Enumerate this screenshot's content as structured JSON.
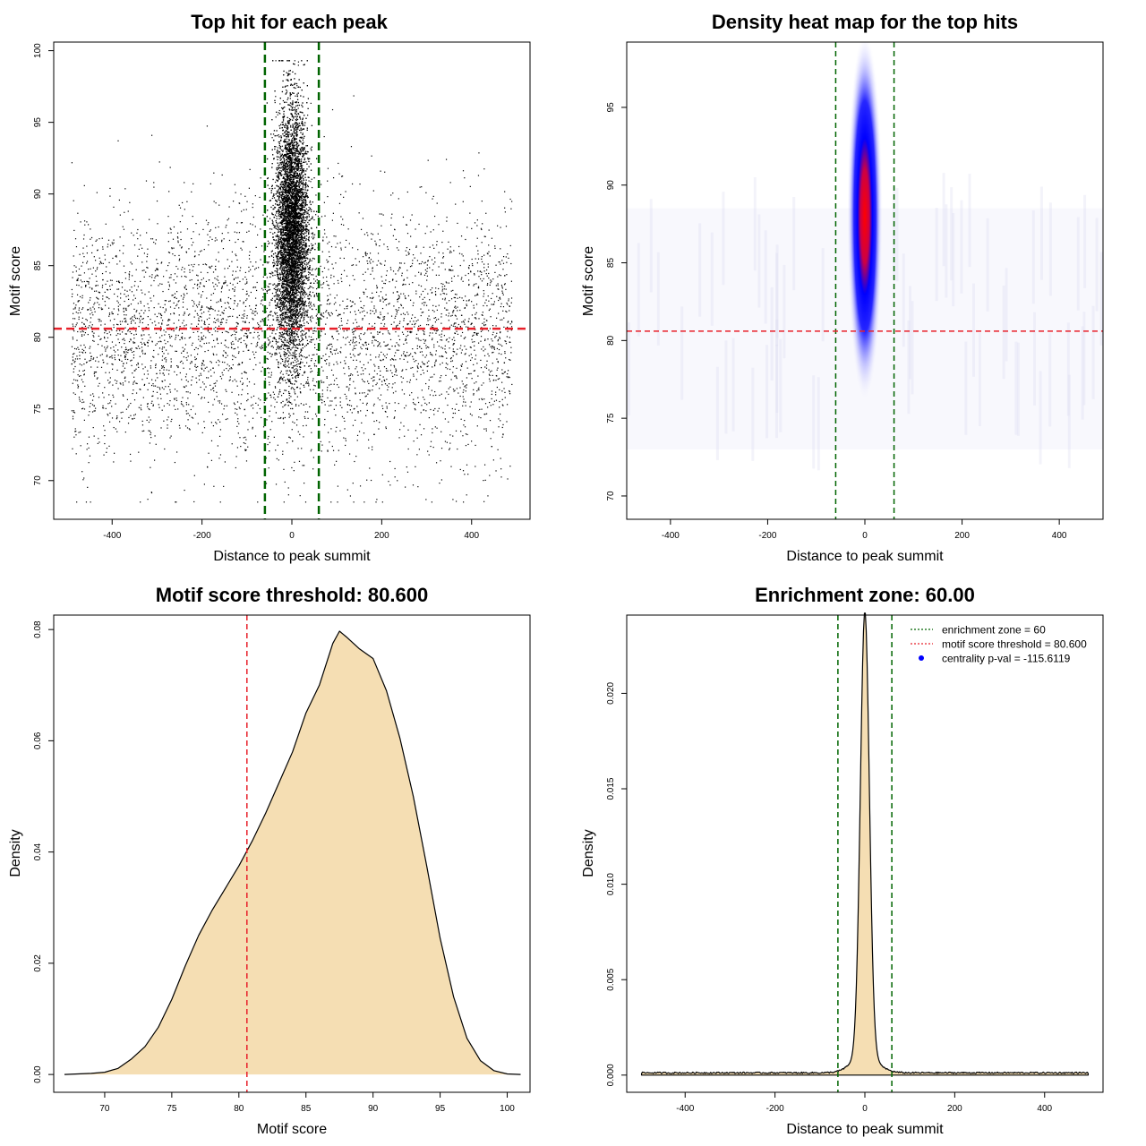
{
  "colors": {
    "green_line": "#006400",
    "red_line": "#e8202a",
    "fill": "#f5deb3",
    "heat_blue": "#0000ff",
    "heat_red": "#ff0000",
    "point": "#000000"
  },
  "chart_data": [
    {
      "id": "p1",
      "type": "scatter",
      "title": "Top hit for each peak",
      "xlabel": "Distance to peak summit",
      "ylabel": "Motif score",
      "xlim": [
        -530,
        530
      ],
      "ylim": [
        67.3,
        100.6
      ],
      "xticks": [
        -400,
        -200,
        0,
        200,
        400
      ],
      "xtick_labels": [
        "-400",
        "-200",
        "0",
        "200",
        "400"
      ],
      "yticks": [
        70,
        75,
        80,
        85,
        90,
        95,
        100
      ],
      "ytick_labels": [
        "70",
        "75",
        "80",
        "85",
        "90",
        "95",
        "100"
      ],
      "vlines": [
        -60,
        60
      ],
      "hline": 80.6,
      "points": {
        "central": {
          "count": 9000,
          "x_mean": 0,
          "x_sd": 18,
          "x_range": [
            -55,
            55
          ],
          "y_mean": 87.3,
          "y_sd": 4.3,
          "y_range": [
            72,
            99.3
          ]
        },
        "background": {
          "count": 4500,
          "x_range": [
            -490,
            490
          ],
          "y_mean": 80.2,
          "y_sd": 4.4,
          "y_range": [
            68.5,
            98.5
          ]
        }
      }
    },
    {
      "id": "p2",
      "type": "heatmap",
      "title": "Density heat map for the top hits",
      "xlabel": "Distance to peak summit",
      "ylabel": "Motif score",
      "xlim": [
        -490,
        490
      ],
      "ylim": [
        68.5,
        99.2
      ],
      "xticks": [
        -400,
        -200,
        0,
        200,
        400
      ],
      "xtick_labels": [
        "-400",
        "-200",
        "0",
        "200",
        "400"
      ],
      "yticks": [
        70,
        75,
        80,
        85,
        90,
        95
      ],
      "ytick_labels": [
        "70",
        "75",
        "80",
        "85",
        "90",
        "95"
      ],
      "vlines": [
        -60,
        60
      ],
      "hline": 80.6,
      "density": {
        "center_x": 0,
        "sd_x": 14,
        "center_y": 88.0,
        "sd_y": 4.6
      }
    },
    {
      "id": "p3",
      "type": "area",
      "title": "Motif score threshold: 80.600",
      "xlabel": "Motif score",
      "ylabel": "Density",
      "xlim": [
        66.2,
        101.7
      ],
      "ylim": [
        -0.0032,
        0.0826
      ],
      "xticks": [
        70,
        75,
        80,
        85,
        90,
        95,
        100
      ],
      "xtick_labels": [
        "70",
        "75",
        "80",
        "85",
        "90",
        "95",
        "100"
      ],
      "yticks": [
        0.0,
        0.02,
        0.04,
        0.06,
        0.08
      ],
      "ytick_labels": [
        "0.00",
        "0.02",
        "0.04",
        "0.06",
        "0.08"
      ],
      "vline": 80.6,
      "x": [
        67,
        68,
        69,
        70,
        71,
        72,
        73,
        74,
        75,
        76,
        77,
        78,
        79,
        80,
        81,
        82,
        83,
        84,
        85,
        86,
        87,
        87.5,
        88,
        89,
        90,
        91,
        92,
        93,
        94,
        95,
        96,
        97,
        98,
        99,
        100,
        101
      ],
      "y": [
        0.0,
        0.0001,
        0.0002,
        0.0004,
        0.0011,
        0.0028,
        0.005,
        0.0085,
        0.0135,
        0.0195,
        0.025,
        0.0295,
        0.0335,
        0.0375,
        0.042,
        0.047,
        0.0525,
        0.058,
        0.065,
        0.07,
        0.0775,
        0.0797,
        0.0787,
        0.0765,
        0.0748,
        0.069,
        0.0605,
        0.05,
        0.0375,
        0.0245,
        0.014,
        0.0065,
        0.0025,
        0.0007,
        0.0001,
        0.0
      ]
    },
    {
      "id": "p4",
      "type": "area",
      "title": "Enrichment zone: 60.00",
      "xlabel": "Distance to peak summit",
      "ylabel": "Density",
      "xlim": [
        -530,
        530
      ],
      "ylim": [
        -0.0009,
        0.0241
      ],
      "xticks": [
        -400,
        -200,
        0,
        200,
        400
      ],
      "xtick_labels": [
        "-400",
        "-200",
        "0",
        "200",
        "400"
      ],
      "yticks": [
        0.0,
        0.005,
        0.01,
        0.015,
        0.02
      ],
      "ytick_labels": [
        "0.000",
        "0.005",
        "0.010",
        "0.015",
        "0.020"
      ],
      "vlines": [
        -60,
        60
      ],
      "peak": {
        "center": 0,
        "sd": 10,
        "height": 0.0233
      },
      "baseline": 0.00012,
      "x_range": [
        -497,
        497
      ],
      "legend": [
        {
          "label": "enrichment zone = 60",
          "style": "dotted",
          "color": "#006400"
        },
        {
          "label": "motif score threshold = 80.600",
          "style": "dotted",
          "color": "#e8202a"
        },
        {
          "label": "centrality p-val = -115.6119",
          "style": "point",
          "color": "#0000ff"
        }
      ]
    }
  ]
}
